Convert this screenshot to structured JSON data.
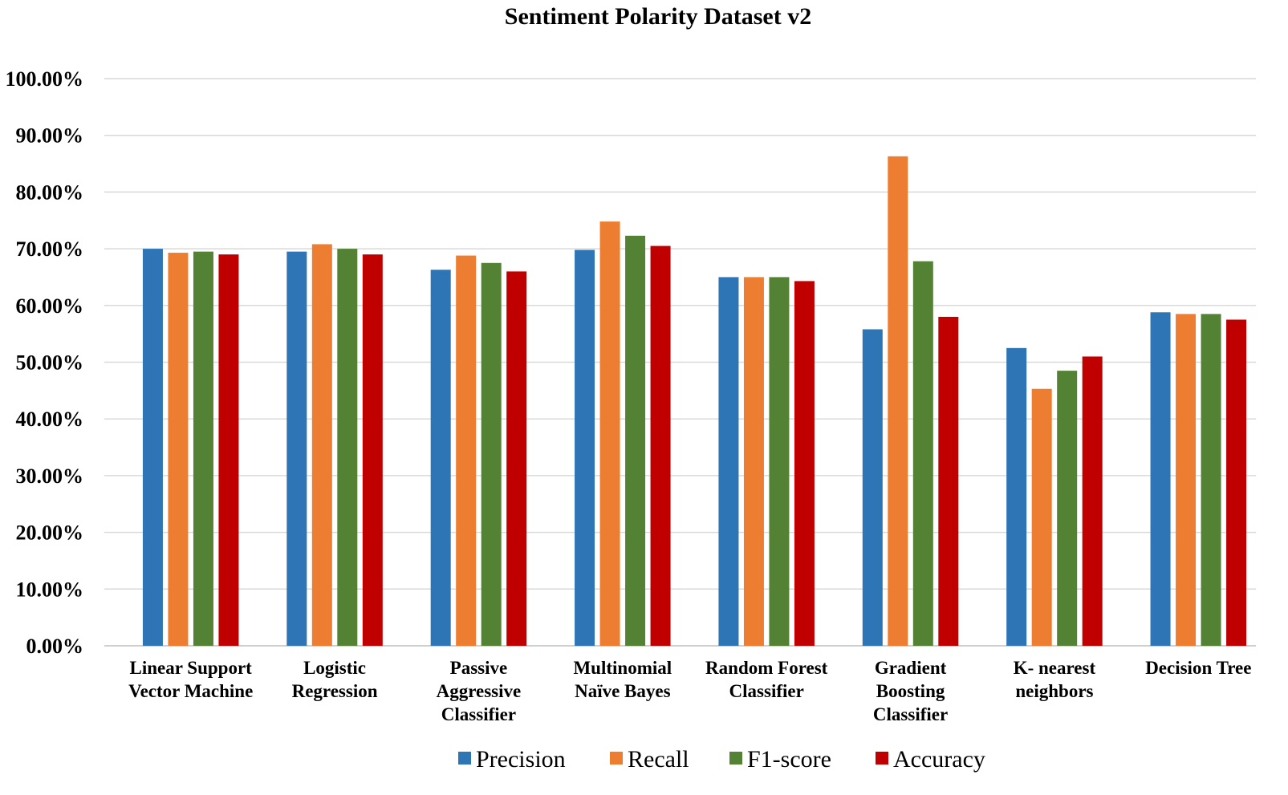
{
  "chart_data": {
    "type": "bar",
    "title": "Sentiment Polarity Dataset v2",
    "xlabel": "",
    "ylabel": "",
    "ylim": [
      0,
      100
    ],
    "y_ticks": [
      "0.00%",
      "10.00%",
      "20.00%",
      "30.00%",
      "40.00%",
      "50.00%",
      "60.00%",
      "70.00%",
      "80.00%",
      "90.00%",
      "100.00%"
    ],
    "grid": true,
    "legend_position": "bottom",
    "categories": [
      [
        "Linear Support",
        "Vector Machine"
      ],
      [
        "Logistic",
        "Regression"
      ],
      [
        "Passive",
        "Aggressive",
        "Classifier"
      ],
      [
        "Multinomial",
        "Naïve Bayes"
      ],
      [
        "Random Forest",
        "Classifier"
      ],
      [
        "Gradient",
        "Boosting",
        "Classifier"
      ],
      [
        "K- nearest",
        "neighbors"
      ],
      [
        "Decision Tree"
      ]
    ],
    "series": [
      {
        "name": "Precision",
        "color": "#2e75b6",
        "values": [
          70.0,
          69.5,
          66.3,
          69.8,
          65.0,
          55.8,
          52.5,
          58.8
        ]
      },
      {
        "name": "Recall",
        "color": "#ed7d31",
        "values": [
          69.3,
          70.8,
          68.8,
          74.8,
          65.0,
          86.3,
          45.3,
          58.5
        ]
      },
      {
        "name": "F1-score",
        "color": "#548235",
        "values": [
          69.5,
          70.0,
          67.5,
          72.3,
          65.0,
          67.8,
          48.5,
          58.5
        ]
      },
      {
        "name": "Accuracy",
        "color": "#c00000",
        "values": [
          69.0,
          69.0,
          66.0,
          70.5,
          64.3,
          58.0,
          51.0,
          57.5
        ]
      }
    ]
  }
}
